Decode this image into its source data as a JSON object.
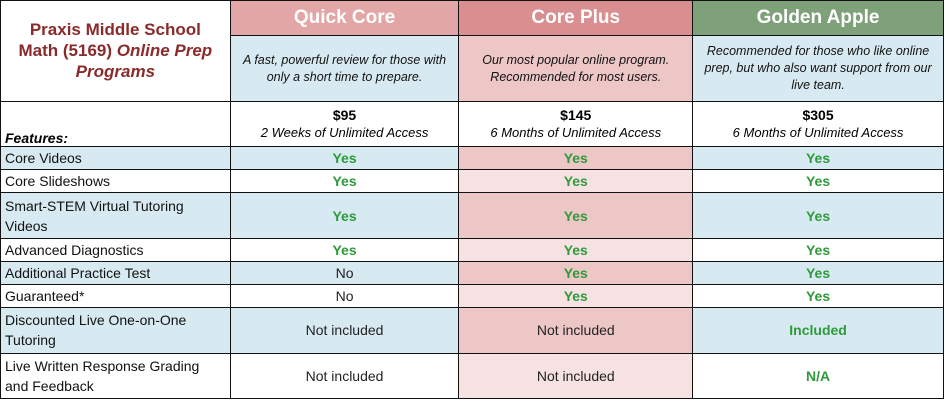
{
  "brand": {
    "line1": "Praxis Middle School",
    "line2_plain": "Math (5169) ",
    "line2_italic": "Online Prep",
    "line3_italic": "Programs"
  },
  "plans": [
    {
      "name": "Quick Core",
      "description": "A fast, powerful review for those with only a short time to prepare.",
      "price": "$95",
      "access": "2 Weeks of Unlimited Access"
    },
    {
      "name": "Core Plus",
      "description": "Our most popular online program. Recommended for most users.",
      "price": "$145",
      "access": "6 Months of Unlimited Access"
    },
    {
      "name": "Golden Apple",
      "description": "Recommended for those who like online prep, but who also want support from our live team.",
      "price": "$305",
      "access": "6 Months of Unlimited Access"
    }
  ],
  "features_label": "Features:",
  "features": [
    {
      "label": "Core Videos",
      "values": [
        "Yes",
        "Yes",
        "Yes"
      ]
    },
    {
      "label": "Core Slideshows",
      "values": [
        "Yes",
        "Yes",
        "Yes"
      ]
    },
    {
      "label": "Smart-STEM Virtual Tutoring Videos",
      "values": [
        "Yes",
        "Yes",
        "Yes"
      ]
    },
    {
      "label": "Advanced Diagnostics",
      "values": [
        "Yes",
        "Yes",
        "Yes"
      ]
    },
    {
      "label": "Additional Practice Test",
      "values": [
        "No",
        "Yes",
        "Yes"
      ]
    },
    {
      "label": "Guaranteed*",
      "values": [
        "No",
        "Yes",
        "Yes"
      ]
    },
    {
      "label": "Discounted Live One-on-One Tutoring",
      "values": [
        "Not included",
        "Not included",
        "Included"
      ]
    },
    {
      "label": "Live Written Response Grading and Feedback",
      "values": [
        "Not included",
        "Not included",
        "N/A"
      ]
    }
  ],
  "colors": {
    "brand_text": "#8b2a2a",
    "header_quick": "#e2a6a6",
    "header_plus": "#d98f8f",
    "header_gold": "#7fa17a",
    "row_blue": "#d8eaf1",
    "row_pink": "#edc6c6",
    "row_pink_light": "#f6e2e2",
    "positive_text": "#2f9a3c"
  }
}
